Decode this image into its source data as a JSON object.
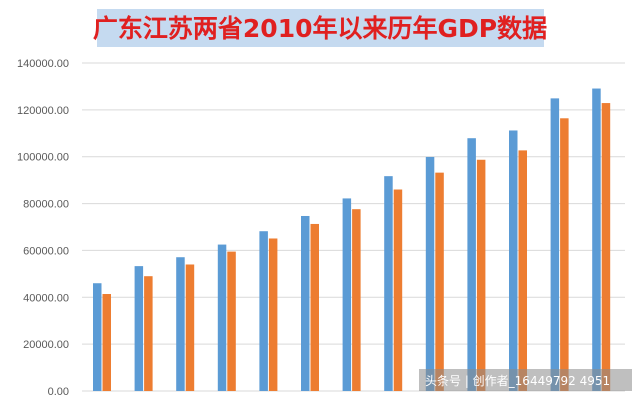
{
  "chart_data": {
    "type": "bar",
    "title": "广东江苏两省2010年以来历年GDP数据",
    "xlabel": "",
    "ylabel": "",
    "ylim": [
      0,
      140000
    ],
    "yticks": [
      "0.00",
      "20000.00",
      "40000.00",
      "60000.00",
      "80000.00",
      "100000.00",
      "120000.00",
      "140000.00"
    ],
    "grid": true,
    "categories": [
      "",
      "",
      "",
      "",
      "",
      "",
      "",
      "",
      "",
      "",
      "",
      "",
      ""
    ],
    "series": [
      {
        "color": "#5b9bd5",
        "values": [
          46000,
          53300,
          57100,
          62500,
          68200,
          74700,
          82200,
          91700,
          99900,
          107900,
          111200,
          124900,
          129100
        ]
      },
      {
        "color": "#ed7d31",
        "values": [
          41400,
          49000,
          54000,
          59500,
          65100,
          71300,
          77600,
          86000,
          93200,
          98700,
          102700,
          116400,
          122900
        ]
      }
    ]
  },
  "watermark": "头条号 | 创作者_16449792 4951"
}
